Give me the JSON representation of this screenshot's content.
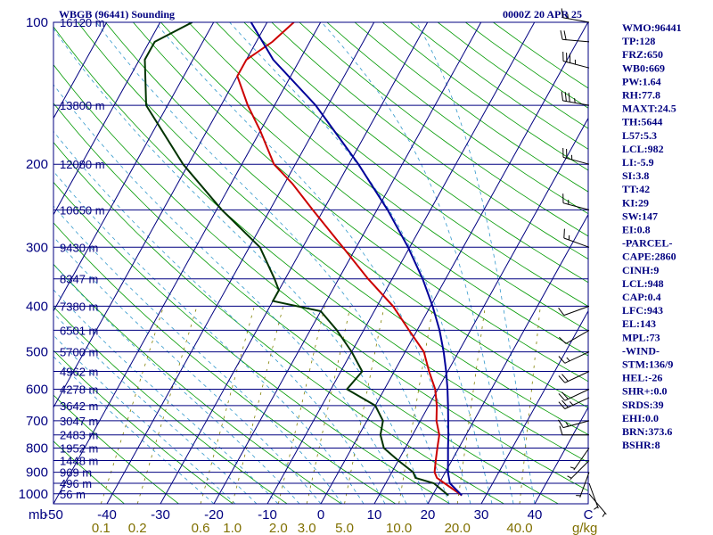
{
  "title_left": "WBGB (96441) Sounding",
  "title_right": "0000Z 20 APR 25",
  "chart_data": {
    "type": "line",
    "skewt": true,
    "pressure_axis_label": "mb",
    "mixing_axis_unit": "g/kg",
    "pressure_levels": [
      100,
      200,
      300,
      400,
      500,
      600,
      700,
      800,
      900,
      1000
    ],
    "pressure_range": [
      1050,
      100
    ],
    "temperature_ticks": [
      "-50",
      "-40",
      "-30",
      "-20",
      "-10",
      "0",
      "10",
      "20",
      "30",
      "40",
      "C"
    ],
    "temperature_tick_values": [
      -50,
      -40,
      -30,
      -20,
      -10,
      0,
      10,
      20,
      30,
      40,
      50
    ],
    "mixing_ratio_ticks": [
      "0.1",
      "0.2",
      "0.6",
      "1.0",
      "2.0",
      "3.0",
      "5.0",
      "10.0",
      "20.0",
      "40.0"
    ],
    "mixing_ratio_values": [
      0.1,
      0.2,
      0.6,
      1.0,
      2.0,
      3.0,
      5.0,
      10.0,
      20.0,
      40.0
    ],
    "height_labels": [
      {
        "p": 100,
        "text": "16120 m"
      },
      {
        "p": 150,
        "text": "13800 m"
      },
      {
        "p": 200,
        "text": "12080 m"
      },
      {
        "p": 250,
        "text": "10650 m"
      },
      {
        "p": 300,
        "text": "9430 m"
      },
      {
        "p": 350,
        "text": "8347 m"
      },
      {
        "p": 400,
        "text": "7380 m"
      },
      {
        "p": 450,
        "text": "6501 m"
      },
      {
        "p": 500,
        "text": "5700 m"
      },
      {
        "p": 550,
        "text": "4962 m"
      },
      {
        "p": 600,
        "text": "4278 m"
      },
      {
        "p": 650,
        "text": "3642 m"
      },
      {
        "p": 700,
        "text": "3047 m"
      },
      {
        "p": 750,
        "text": "2483 m"
      },
      {
        "p": 800,
        "text": "1952 m"
      },
      {
        "p": 850,
        "text": "1448 m"
      },
      {
        "p": 900,
        "text": "969 m"
      },
      {
        "p": 950,
        "text": "496 m"
      },
      {
        "p": 1000,
        "text": "56 m"
      }
    ],
    "series": [
      {
        "color": "#cc0000",
        "role": "temperature",
        "points": [
          [
            1008,
            25.5
          ],
          [
            950,
            21.0
          ],
          [
            925,
            19.0
          ],
          [
            900,
            18.0
          ],
          [
            850,
            17.0
          ],
          [
            800,
            16.0
          ],
          [
            750,
            15.0
          ],
          [
            700,
            13.0
          ],
          [
            650,
            11.5
          ],
          [
            600,
            9.5
          ],
          [
            550,
            6.5
          ],
          [
            500,
            3.5
          ],
          [
            450,
            -1.5
          ],
          [
            400,
            -7.0
          ],
          [
            350,
            -14.5
          ],
          [
            300,
            -22.5
          ],
          [
            250,
            -32.0
          ],
          [
            220,
            -38.5
          ],
          [
            200,
            -44.0
          ],
          [
            170,
            -50.0
          ],
          [
            150,
            -55.0
          ],
          [
            130,
            -60.0
          ],
          [
            120,
            -60.0
          ],
          [
            110,
            -57.0
          ],
          [
            100,
            -55.0
          ]
        ]
      },
      {
        "color": "#003300",
        "role": "dewpoint",
        "points": [
          [
            1008,
            23.0
          ],
          [
            950,
            19.0
          ],
          [
            925,
            15.0
          ],
          [
            900,
            14.0
          ],
          [
            850,
            10.0
          ],
          [
            800,
            6.0
          ],
          [
            750,
            4.0
          ],
          [
            700,
            3.0
          ],
          [
            650,
            0.0
          ],
          [
            600,
            -7.0
          ],
          [
            550,
            -6.0
          ],
          [
            500,
            -10.0
          ],
          [
            450,
            -15.0
          ],
          [
            410,
            -20.0
          ],
          [
            390,
            -30.0
          ],
          [
            370,
            -30.0
          ],
          [
            350,
            -32.0
          ],
          [
            300,
            -38.0
          ],
          [
            250,
            -49.0
          ],
          [
            200,
            -61.0
          ],
          [
            150,
            -74.0
          ],
          [
            120,
            -79.0
          ],
          [
            110,
            -79.0
          ],
          [
            100,
            -74.0
          ]
        ]
      },
      {
        "color": "#000099",
        "role": "parcel",
        "points": [
          [
            1008,
            25.5
          ],
          [
            950,
            22.0
          ],
          [
            900,
            20.5
          ],
          [
            850,
            19.3
          ],
          [
            800,
            18.0
          ],
          [
            750,
            16.7
          ],
          [
            700,
            15.2
          ],
          [
            650,
            13.6
          ],
          [
            600,
            11.8
          ],
          [
            550,
            9.7
          ],
          [
            500,
            7.2
          ],
          [
            450,
            4.2
          ],
          [
            400,
            0.4
          ],
          [
            350,
            -4.3
          ],
          [
            300,
            -10.3
          ],
          [
            250,
            -18.0
          ],
          [
            200,
            -28.2
          ],
          [
            150,
            -42.3
          ],
          [
            120,
            -55.0
          ],
          [
            100,
            -63.0
          ]
        ]
      }
    ],
    "wind_barbs": [
      {
        "p": 100,
        "dir": 280,
        "spd": 15
      },
      {
        "p": 110,
        "dir": 275,
        "spd": 20
      },
      {
        "p": 125,
        "dir": 285,
        "spd": 35
      },
      {
        "p": 150,
        "dir": 280,
        "spd": 35
      },
      {
        "p": 200,
        "dir": 285,
        "spd": 25
      },
      {
        "p": 250,
        "dir": 285,
        "spd": 15
      },
      {
        "p": 300,
        "dir": 290,
        "spd": 15
      },
      {
        "p": 400,
        "dir": 250,
        "spd": 10
      },
      {
        "p": 450,
        "dir": 240,
        "spd": 10
      },
      {
        "p": 500,
        "dir": 245,
        "spd": 15
      },
      {
        "p": 550,
        "dir": 245,
        "spd": 20
      },
      {
        "p": 600,
        "dir": 245,
        "spd": 20
      },
      {
        "p": 625,
        "dir": 245,
        "spd": 25
      },
      {
        "p": 700,
        "dir": 255,
        "spd": 15
      },
      {
        "p": 750,
        "dir": 270,
        "spd": 10
      },
      {
        "p": 800,
        "dir": 215,
        "spd": 5
      },
      {
        "p": 850,
        "dir": 225,
        "spd": 5
      },
      {
        "p": 900,
        "dir": 200,
        "spd": 5
      },
      {
        "p": 950,
        "dir": 160,
        "spd": 5
      },
      {
        "p": 1000,
        "dir": 140,
        "spd": 5
      }
    ]
  },
  "indices": [
    "WMO:96441",
    "TP:128",
    "FRZ:650",
    "WB0:669",
    "PW:1.64",
    "RH:77.8",
    "MAXT:24.5",
    "TH:5644",
    "L57:5.3",
    "LCL:982",
    "LI:-5.9",
    "SI:3.8",
    "TT:42",
    "KI:29",
    "SW:147",
    "EI:0.8",
    "-PARCEL-",
    "CAPE:2860",
    "CINH:9",
    "LCL:948",
    "CAP:0.4",
    "LFC:943",
    "EL:143",
    "MPL:73",
    "-WIND-",
    "STM:136/9",
    "HEL:-26",
    "SHR+:0.0",
    "SRDS:39",
    "EHI:0.0",
    "BRN:373.6",
    "BSHR:8"
  ],
  "colors": {
    "isobar": "#000080",
    "isotherm": "#000080",
    "dry_adiabat": "#009900",
    "moist_adiabat": "#3399cc",
    "mixing_ratio": "#808000",
    "temperature": "#cc0000",
    "dewpoint": "#003300",
    "parcel": "#000099"
  }
}
